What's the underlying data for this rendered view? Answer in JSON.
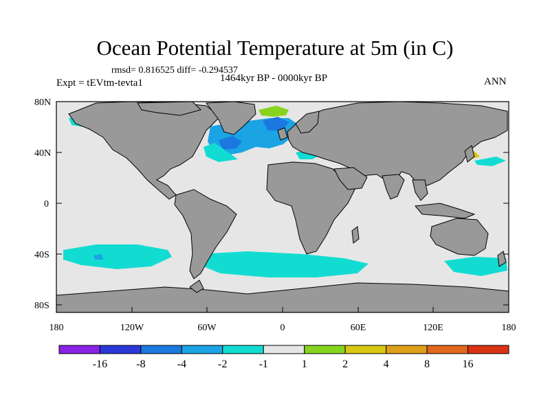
{
  "title": "Ocean Potential Temperature at 5m (in C)",
  "stats_line": "rmsd= 0.816525 diff= -0.294537",
  "experiment": "Expt = tEVtm-tevta1",
  "period": "1464kyr BP - 0000kyr BP",
  "season": "ANN",
  "axes": {
    "lat_ticks": [
      "80N",
      "40N",
      "0",
      "40S",
      "80S"
    ],
    "lon_ticks": [
      "180",
      "120W",
      "60W",
      "0",
      "60E",
      "120E",
      "180"
    ]
  },
  "colors": {
    "ocean_neutral": "#e6e6e6",
    "land": "#999999",
    "coast": "#000000"
  },
  "colorbar": {
    "labels": [
      "-16",
      "-8",
      "-4",
      "-2",
      "-1",
      "1",
      "2",
      "4",
      "8",
      "16"
    ],
    "bins": [
      {
        "color": "#8a22e6"
      },
      {
        "color": "#2a38d8"
      },
      {
        "color": "#1b78e0"
      },
      {
        "color": "#1aa4e4"
      },
      {
        "color": "#12dcd2"
      },
      {
        "color": "#e6e6e6"
      },
      {
        "color": "#86d41e"
      },
      {
        "color": "#d8c812"
      },
      {
        "color": "#e09f1a"
      },
      {
        "color": "#e0681e"
      },
      {
        "color": "#d83414"
      }
    ]
  }
}
